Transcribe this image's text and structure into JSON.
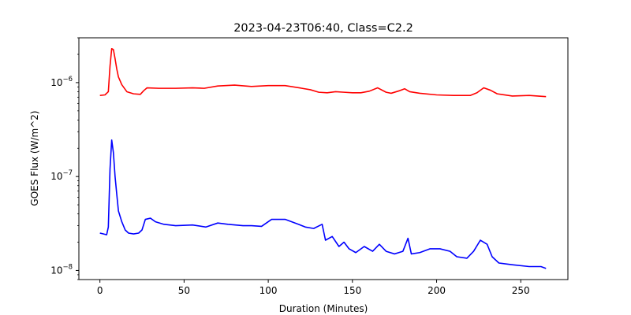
{
  "chart_data": {
    "type": "line",
    "title": "2023-04-23T06:40, Class=C2.2",
    "xlabel": "Duration (Minutes)",
    "ylabel": "GOES Flux (W/m^2)",
    "xlim": [
      -12.5,
      278
    ],
    "ylim": [
      8e-09,
      3e-06
    ],
    "yscale": "log",
    "grid": false,
    "x_ticks": [
      0,
      50,
      100,
      150,
      200,
      250
    ],
    "y_ticks": [
      1e-08,
      1e-07,
      1e-06
    ],
    "y_tick_labels": [
      {
        "base": "10",
        "exp": "−8"
      },
      {
        "base": "10",
        "exp": "−7"
      },
      {
        "base": "10",
        "exp": "−6"
      }
    ],
    "series": [
      {
        "color": "#ff0000",
        "points": [
          [
            0,
            7.3e-07
          ],
          [
            3,
            7.4e-07
          ],
          [
            5,
            8e-07
          ],
          [
            6,
            1.5e-06
          ],
          [
            7,
            2.3e-06
          ],
          [
            8,
            2.25e-06
          ],
          [
            9,
            1.8e-06
          ],
          [
            10,
            1.4e-06
          ],
          [
            11,
            1.15e-06
          ],
          [
            13,
            9.5e-07
          ],
          [
            16,
            8e-07
          ],
          [
            20,
            7.6e-07
          ],
          [
            24,
            7.5e-07
          ],
          [
            26,
            8.2e-07
          ],
          [
            28,
            8.8e-07
          ],
          [
            35,
            8.7e-07
          ],
          [
            45,
            8.7e-07
          ],
          [
            55,
            8.8e-07
          ],
          [
            62,
            8.7e-07
          ],
          [
            70,
            9.2e-07
          ],
          [
            80,
            9.4e-07
          ],
          [
            90,
            9.1e-07
          ],
          [
            100,
            9.3e-07
          ],
          [
            110,
            9.3e-07
          ],
          [
            120,
            8.7e-07
          ],
          [
            125,
            8.4e-07
          ],
          [
            130,
            7.9e-07
          ],
          [
            135,
            7.8e-07
          ],
          [
            140,
            8e-07
          ],
          [
            145,
            7.9e-07
          ],
          [
            150,
            7.8e-07
          ],
          [
            155,
            7.8e-07
          ],
          [
            160,
            8.1e-07
          ],
          [
            165,
            8.8e-07
          ],
          [
            170,
            7.9e-07
          ],
          [
            173,
            7.7e-07
          ],
          [
            178,
            8.2e-07
          ],
          [
            181,
            8.6e-07
          ],
          [
            184,
            8e-07
          ],
          [
            190,
            7.7e-07
          ],
          [
            200,
            7.4e-07
          ],
          [
            210,
            7.3e-07
          ],
          [
            220,
            7.3e-07
          ],
          [
            224,
            7.8e-07
          ],
          [
            228,
            8.8e-07
          ],
          [
            232,
            8.3e-07
          ],
          [
            236,
            7.6e-07
          ],
          [
            245,
            7.2e-07
          ],
          [
            255,
            7.3e-07
          ],
          [
            265,
            7.1e-07
          ]
        ]
      },
      {
        "color": "#0000ff",
        "points": [
          [
            0,
            2.5e-08
          ],
          [
            2,
            2.45e-08
          ],
          [
            4,
            2.4e-08
          ],
          [
            5,
            2.9e-08
          ],
          [
            6,
            1.2e-07
          ],
          [
            7,
            2.45e-07
          ],
          [
            8,
            1.8e-07
          ],
          [
            9,
            1e-07
          ],
          [
            10,
            6.5e-08
          ],
          [
            11,
            4.3e-08
          ],
          [
            13,
            3.3e-08
          ],
          [
            15,
            2.7e-08
          ],
          [
            17,
            2.5e-08
          ],
          [
            20,
            2.45e-08
          ],
          [
            23,
            2.5e-08
          ],
          [
            25,
            2.7e-08
          ],
          [
            27,
            3.5e-08
          ],
          [
            30,
            3.6e-08
          ],
          [
            33,
            3.3e-08
          ],
          [
            38,
            3.1e-08
          ],
          [
            45,
            3e-08
          ],
          [
            55,
            3.05e-08
          ],
          [
            63,
            2.9e-08
          ],
          [
            70,
            3.2e-08
          ],
          [
            76,
            3.1e-08
          ],
          [
            85,
            3e-08
          ],
          [
            90,
            3e-08
          ],
          [
            96,
            2.95e-08
          ],
          [
            102,
            3.5e-08
          ],
          [
            110,
            3.5e-08
          ],
          [
            118,
            3.1e-08
          ],
          [
            122,
            2.9e-08
          ],
          [
            127,
            2.8e-08
          ],
          [
            132,
            3.1e-08
          ],
          [
            134,
            2.1e-08
          ],
          [
            138,
            2.3e-08
          ],
          [
            142,
            1.8e-08
          ],
          [
            145,
            2e-08
          ],
          [
            148,
            1.7e-08
          ],
          [
            152,
            1.55e-08
          ],
          [
            157,
            1.8e-08
          ],
          [
            162,
            1.6e-08
          ],
          [
            166,
            1.9e-08
          ],
          [
            170,
            1.6e-08
          ],
          [
            175,
            1.5e-08
          ],
          [
            180,
            1.6e-08
          ],
          [
            183,
            2.2e-08
          ],
          [
            185,
            1.5e-08
          ],
          [
            190,
            1.55e-08
          ],
          [
            196,
            1.7e-08
          ],
          [
            202,
            1.7e-08
          ],
          [
            208,
            1.6e-08
          ],
          [
            212,
            1.4e-08
          ],
          [
            218,
            1.35e-08
          ],
          [
            222,
            1.6e-08
          ],
          [
            226,
            2.1e-08
          ],
          [
            230,
            1.9e-08
          ],
          [
            233,
            1.4e-08
          ],
          [
            237,
            1.2e-08
          ],
          [
            245,
            1.15e-08
          ],
          [
            255,
            1.1e-08
          ],
          [
            262,
            1.1e-08
          ],
          [
            265,
            1.05e-08
          ]
        ]
      }
    ]
  }
}
